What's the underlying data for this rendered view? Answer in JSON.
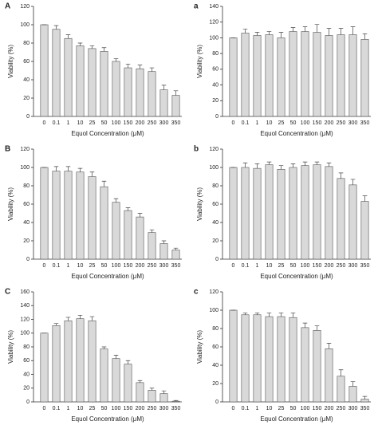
{
  "chart_data": [
    {
      "type": "bar",
      "panel": "A",
      "ylabel": "Viability (%)",
      "xlabel": "Equol Concentration (μM)",
      "color": "#d9d9d9",
      "categories": [
        "0",
        "0.1",
        "1",
        "10",
        "25",
        "50",
        "100",
        "150",
        "200",
        "250",
        "300",
        "350"
      ],
      "values": [
        100,
        95,
        85,
        77,
        74,
        71,
        60,
        53,
        52,
        49,
        29,
        23
      ],
      "errors": [
        0,
        4,
        4,
        3,
        3,
        4,
        3,
        4,
        4,
        4,
        5,
        5
      ],
      "ylim": [
        0,
        120
      ],
      "yticks": [
        0,
        20,
        40,
        60,
        80,
        100,
        120
      ]
    },
    {
      "type": "bar",
      "panel": "a",
      "ylabel": "Viability (%)",
      "xlabel": "Equol Concentration (μM)",
      "color": "#d9d9d9",
      "categories": [
        "0",
        "0.1",
        "1",
        "10",
        "25",
        "50",
        "100",
        "150",
        "200",
        "250",
        "300",
        "350"
      ],
      "values": [
        100,
        106,
        103,
        104,
        100,
        108,
        108,
        107,
        103,
        104,
        104,
        98
      ],
      "errors": [
        0,
        5,
        4,
        4,
        7,
        5,
        6,
        10,
        9,
        8,
        10,
        7
      ],
      "ylim": [
        0,
        140
      ],
      "yticks": [
        0,
        20,
        40,
        60,
        80,
        100,
        120,
        140
      ]
    },
    {
      "type": "bar",
      "panel": "B",
      "ylabel": "Viability (%)",
      "xlabel": "Equol Concentration (μM)",
      "color": "#d9d9d9",
      "categories": [
        "0",
        "0.1",
        "1",
        "10",
        "25",
        "50",
        "100",
        "150",
        "200",
        "250",
        "300",
        "350"
      ],
      "values": [
        100,
        96,
        96,
        95,
        90,
        79,
        62,
        53,
        46,
        29,
        17,
        10
      ],
      "errors": [
        0,
        5,
        5,
        4,
        5,
        6,
        4,
        3,
        4,
        3,
        3,
        2
      ],
      "ylim": [
        0,
        120
      ],
      "yticks": [
        0,
        20,
        40,
        60,
        80,
        100,
        120
      ]
    },
    {
      "type": "bar",
      "panel": "b",
      "ylabel": "Viability (%)",
      "xlabel": "Equol Concentration (μM)",
      "color": "#d9d9d9",
      "categories": [
        "0",
        "0.1",
        "1",
        "10",
        "25",
        "50",
        "100",
        "150",
        "200",
        "250",
        "300",
        "350"
      ],
      "values": [
        100,
        100,
        99,
        103,
        98,
        100,
        102,
        103,
        101,
        88,
        81,
        63
      ],
      "errors": [
        0,
        5,
        5,
        3,
        4,
        4,
        4,
        3,
        4,
        6,
        6,
        6
      ],
      "ylim": [
        0,
        120
      ],
      "yticks": [
        0,
        20,
        40,
        60,
        80,
        100,
        120
      ]
    },
    {
      "type": "bar",
      "panel": "C",
      "ylabel": "Viability (%)",
      "xlabel": "Equol Concentration (μM)",
      "color": "#d9d9d9",
      "categories": [
        "0",
        "0.1",
        "1",
        "10",
        "25",
        "50",
        "100",
        "150",
        "200",
        "250",
        "300",
        "350"
      ],
      "values": [
        100,
        111,
        118,
        121,
        118,
        77,
        63,
        55,
        28,
        17,
        12,
        1
      ],
      "errors": [
        0,
        3,
        5,
        5,
        6,
        3,
        5,
        5,
        3,
        3,
        4,
        1
      ],
      "ylim": [
        0,
        160
      ],
      "yticks": [
        0,
        20,
        40,
        60,
        80,
        100,
        120,
        140,
        160
      ]
    },
    {
      "type": "bar",
      "panel": "c",
      "ylabel": "Viability (%)",
      "xlabel": "Equol Concentration (μM)",
      "color": "#d9d9d9",
      "categories": [
        "0",
        "0.1",
        "1",
        "10",
        "25",
        "50",
        "100",
        "150",
        "200",
        "250",
        "300",
        "350"
      ],
      "values": [
        100,
        95,
        95,
        93,
        93,
        92,
        81,
        78,
        58,
        28,
        17,
        3
      ],
      "errors": [
        0,
        2,
        2,
        4,
        4,
        5,
        5,
        5,
        6,
        7,
        5,
        3
      ],
      "ylim": [
        0,
        120
      ],
      "yticks": [
        0,
        20,
        40,
        60,
        80,
        100,
        120
      ]
    }
  ]
}
